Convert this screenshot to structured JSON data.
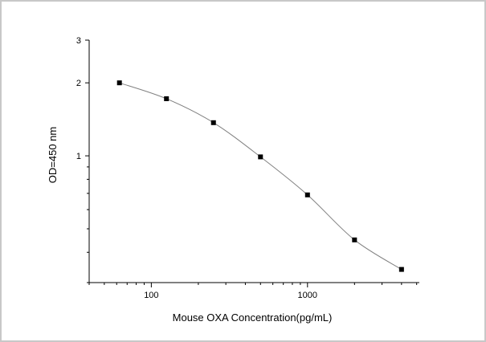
{
  "chart_data": {
    "type": "scatter",
    "title": "",
    "xlabel": "Mouse OXA  Concentration(pg/mL)",
    "ylabel": "OD=450 nm",
    "x_scale": "log",
    "y_scale": "log",
    "xlim": [
      40,
      5200
    ],
    "ylim": [
      0.3,
      3
    ],
    "x_ticks": [
      {
        "value": 100,
        "label": "100"
      },
      {
        "value": 1000,
        "label": "1000"
      }
    ],
    "y_ticks": [
      {
        "value": 1,
        "label": "1"
      },
      {
        "value": 2,
        "label": "2"
      },
      {
        "value": 3,
        "label": "3"
      }
    ],
    "grid": false,
    "legend": "none",
    "series": [
      {
        "marker": "square",
        "color": "#000000",
        "line_color": "#808080",
        "x": [
          62.5,
          125,
          250,
          500,
          1000,
          2000,
          4000
        ],
        "y": [
          2.0,
          1.72,
          1.37,
          0.99,
          0.69,
          0.45,
          0.34
        ]
      }
    ]
  }
}
